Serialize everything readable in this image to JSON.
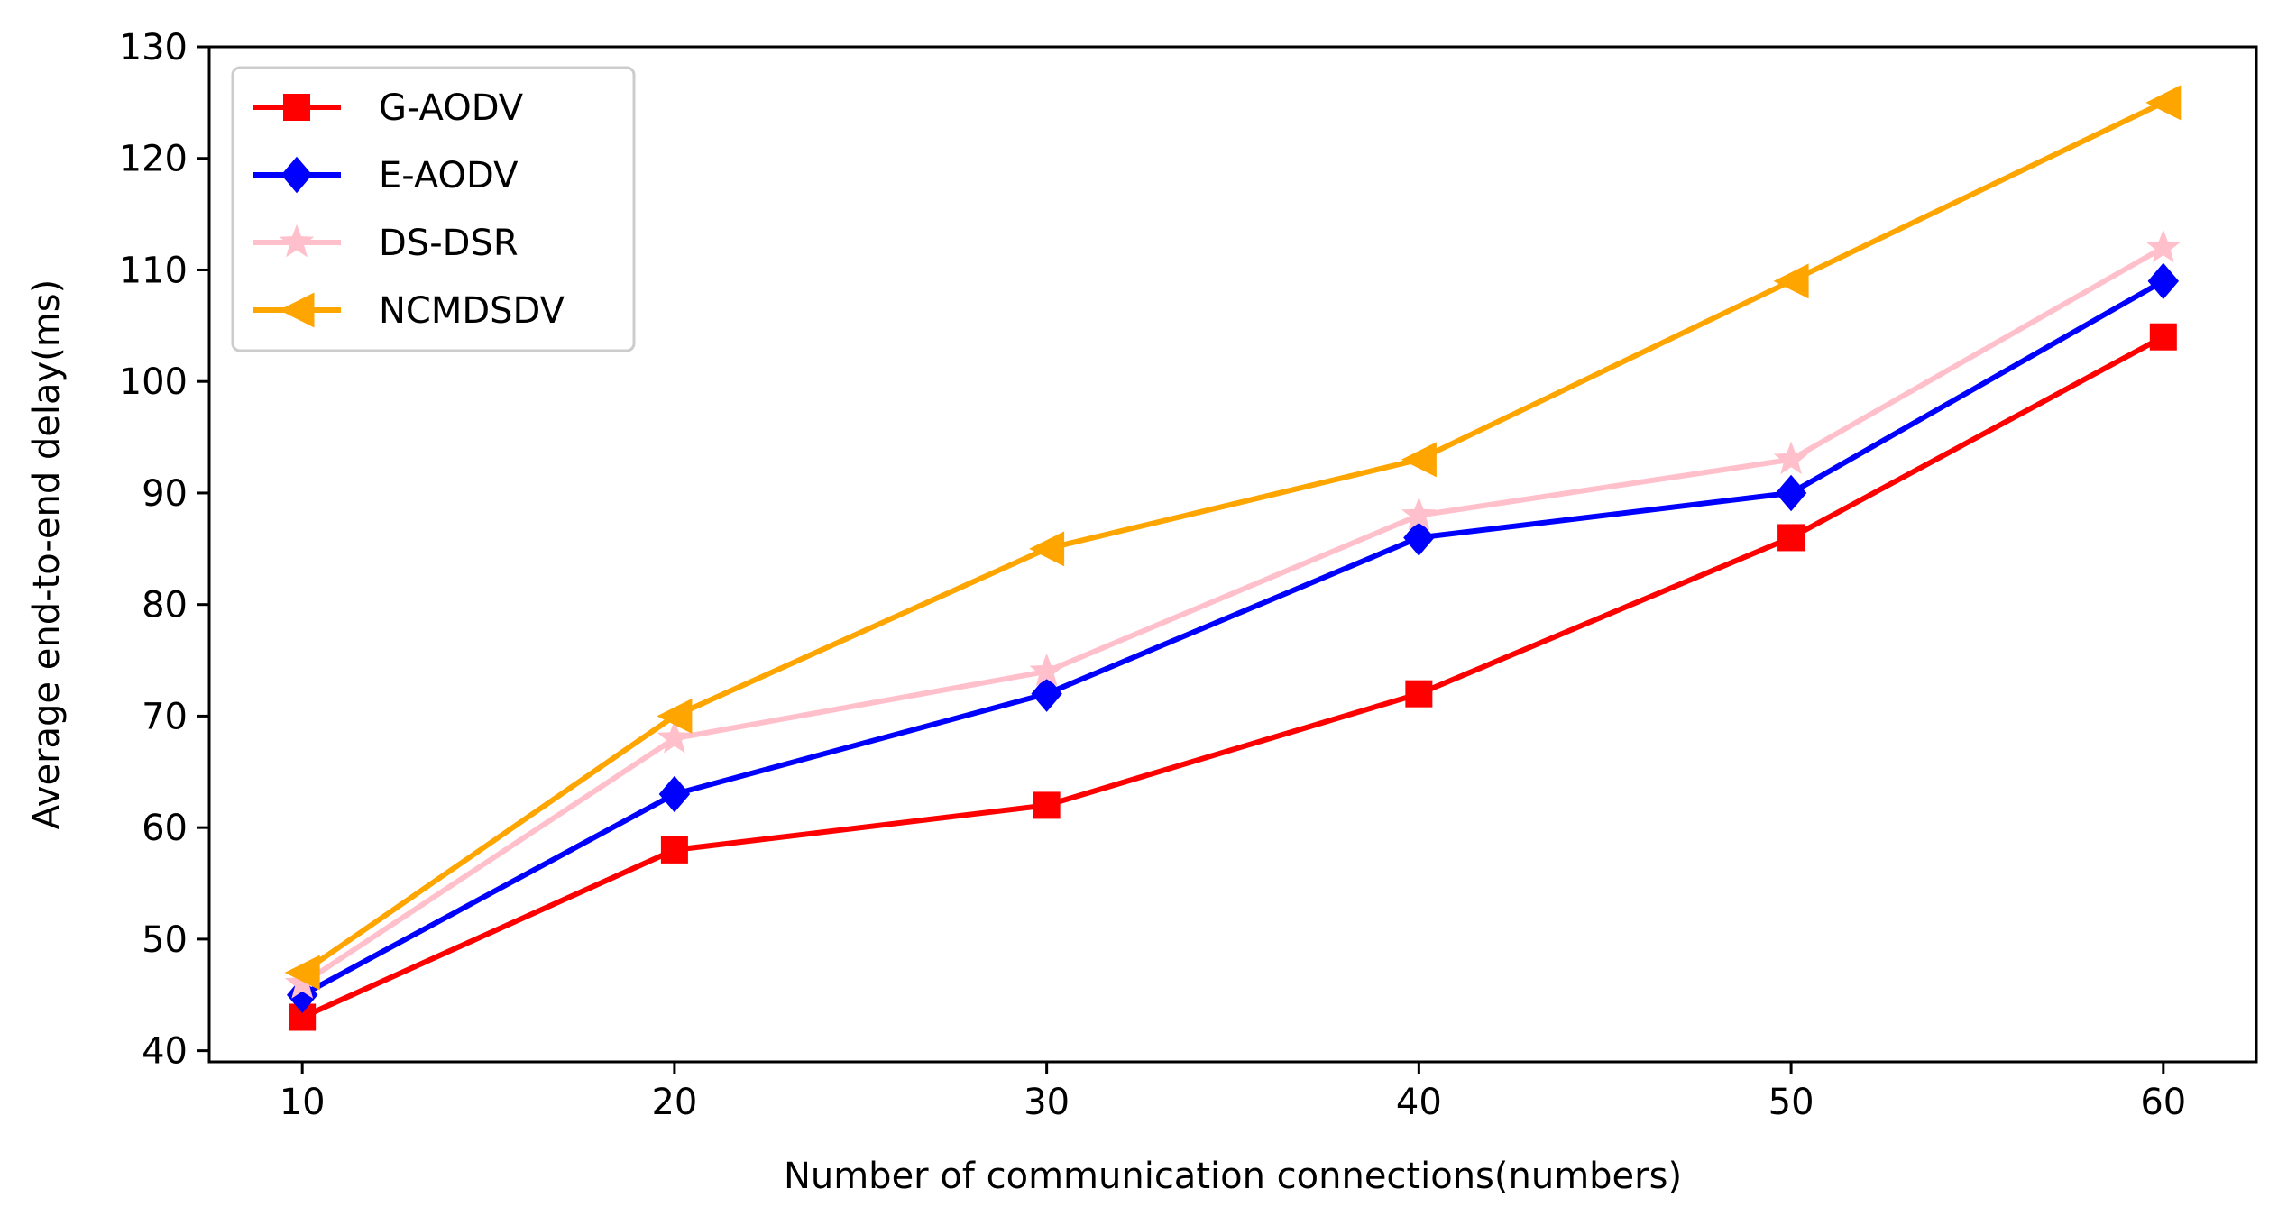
{
  "chart_data": {
    "type": "line",
    "title": "",
    "xlabel": "Number of communication connections(numbers)",
    "ylabel": "Average end-to-end delay(ms)",
    "x": [
      10,
      20,
      30,
      40,
      50,
      60
    ],
    "xlim": [
      7.5,
      62.5
    ],
    "ylim": [
      39,
      130
    ],
    "xticks": [
      10,
      20,
      30,
      40,
      50,
      60
    ],
    "yticks": [
      40,
      50,
      60,
      70,
      80,
      90,
      100,
      110,
      120,
      130
    ],
    "grid": false,
    "legend_position": "top-left",
    "series": [
      {
        "name": "G-AODV",
        "color": "#ff0000",
        "marker": "square",
        "values": [
          43,
          58,
          62,
          72,
          86,
          104
        ]
      },
      {
        "name": "E-AODV",
        "color": "#0000ff",
        "marker": "diamond",
        "values": [
          45,
          63,
          72,
          86,
          90,
          109
        ]
      },
      {
        "name": "DS-DSR",
        "color": "#ffc0cb",
        "marker": "star",
        "values": [
          46,
          68,
          74,
          88,
          93,
          112
        ]
      },
      {
        "name": "NCMDSDV",
        "color": "#ffa500",
        "marker": "triangle-left",
        "values": [
          47,
          70,
          85,
          93,
          109,
          125
        ]
      }
    ]
  }
}
